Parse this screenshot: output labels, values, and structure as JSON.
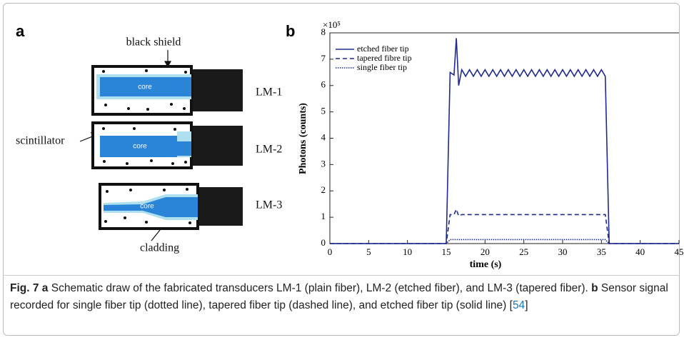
{
  "panel_a": {
    "label": "a",
    "shield_label": "black shield",
    "scintillator_label": "scintillator",
    "cladding_label": "cladding",
    "core_labels": [
      "core",
      "core",
      "core"
    ],
    "sensor_labels": [
      "LM-1",
      "LM-2",
      "LM-3"
    ]
  },
  "chart_data": {
    "type": "line",
    "panel_label": "b",
    "multiplier": "×10⁵",
    "x_label": "time (s)",
    "y_label": "Photons (counts)",
    "xlim": [
      0,
      45
    ],
    "xticks": [
      0,
      5,
      10,
      15,
      20,
      25,
      30,
      35,
      40,
      45
    ],
    "ylim": [
      0,
      8
    ],
    "yticks": [
      0,
      1,
      2,
      3,
      4,
      5,
      6,
      7,
      8
    ],
    "legend": "upper left",
    "x": [
      0,
      15,
      15.5,
      16,
      16.3,
      16.6,
      17,
      17.5,
      18,
      18.5,
      19,
      19.5,
      20,
      20.5,
      21,
      21.5,
      22,
      22.5,
      23,
      23.5,
      24,
      24.5,
      25,
      25.5,
      26,
      26.5,
      27,
      27.5,
      28,
      28.5,
      29,
      29.5,
      30,
      30.5,
      31,
      31.5,
      32,
      32.5,
      33,
      33.5,
      34,
      34.5,
      35,
      35.5,
      36,
      45
    ],
    "series": [
      {
        "name": "etched fiber tip",
        "color": "#1f2a8c",
        "dash": "solid",
        "values": [
          0,
          0,
          6.5,
          6.4,
          7.8,
          6.0,
          6.6,
          6.35,
          6.6,
          6.35,
          6.6,
          6.35,
          6.6,
          6.35,
          6.6,
          6.35,
          6.6,
          6.35,
          6.6,
          6.35,
          6.6,
          6.35,
          6.6,
          6.35,
          6.6,
          6.35,
          6.6,
          6.35,
          6.6,
          6.35,
          6.6,
          6.35,
          6.6,
          6.35,
          6.6,
          6.35,
          6.6,
          6.35,
          6.6,
          6.35,
          6.6,
          6.35,
          6.6,
          6.35,
          0,
          0
        ]
      },
      {
        "name": "tapered fibre tip",
        "color": "#1f2a8c",
        "dash": "dashed",
        "values": [
          0,
          0,
          1.1,
          1.1,
          1.3,
          1.05,
          1.1,
          1.1,
          1.1,
          1.1,
          1.1,
          1.1,
          1.1,
          1.1,
          1.1,
          1.1,
          1.1,
          1.1,
          1.1,
          1.1,
          1.1,
          1.1,
          1.1,
          1.1,
          1.1,
          1.1,
          1.1,
          1.1,
          1.1,
          1.1,
          1.1,
          1.1,
          1.1,
          1.1,
          1.1,
          1.1,
          1.1,
          1.1,
          1.1,
          1.1,
          1.1,
          1.1,
          1.1,
          1.1,
          0,
          0
        ]
      },
      {
        "name": "single fiber tip",
        "color": "#1f2a8c",
        "dash": "dotted",
        "values": [
          0,
          0,
          0.15,
          0.15,
          0.15,
          0.15,
          0.15,
          0.15,
          0.15,
          0.15,
          0.15,
          0.15,
          0.15,
          0.15,
          0.15,
          0.15,
          0.15,
          0.15,
          0.15,
          0.15,
          0.15,
          0.15,
          0.15,
          0.15,
          0.15,
          0.15,
          0.15,
          0.15,
          0.15,
          0.15,
          0.15,
          0.15,
          0.15,
          0.15,
          0.15,
          0.15,
          0.15,
          0.15,
          0.15,
          0.15,
          0.15,
          0.15,
          0.15,
          0.15,
          0,
          0
        ]
      }
    ]
  },
  "caption": {
    "figure": "Fig. 7",
    "part_a": "a",
    "text_a": "Schematic draw of the fabricated transducers LM-1 (plain fiber), LM-2 (etched fiber), and LM-3 (tapered fiber).",
    "part_b": "b",
    "text_b": "Sensor signal recorded for single fiber tip (dotted line), tapered fiber tip (dashed line), and etched fiber tip (solid line)",
    "ref_open": "[",
    "ref": "54",
    "ref_close": "]"
  }
}
